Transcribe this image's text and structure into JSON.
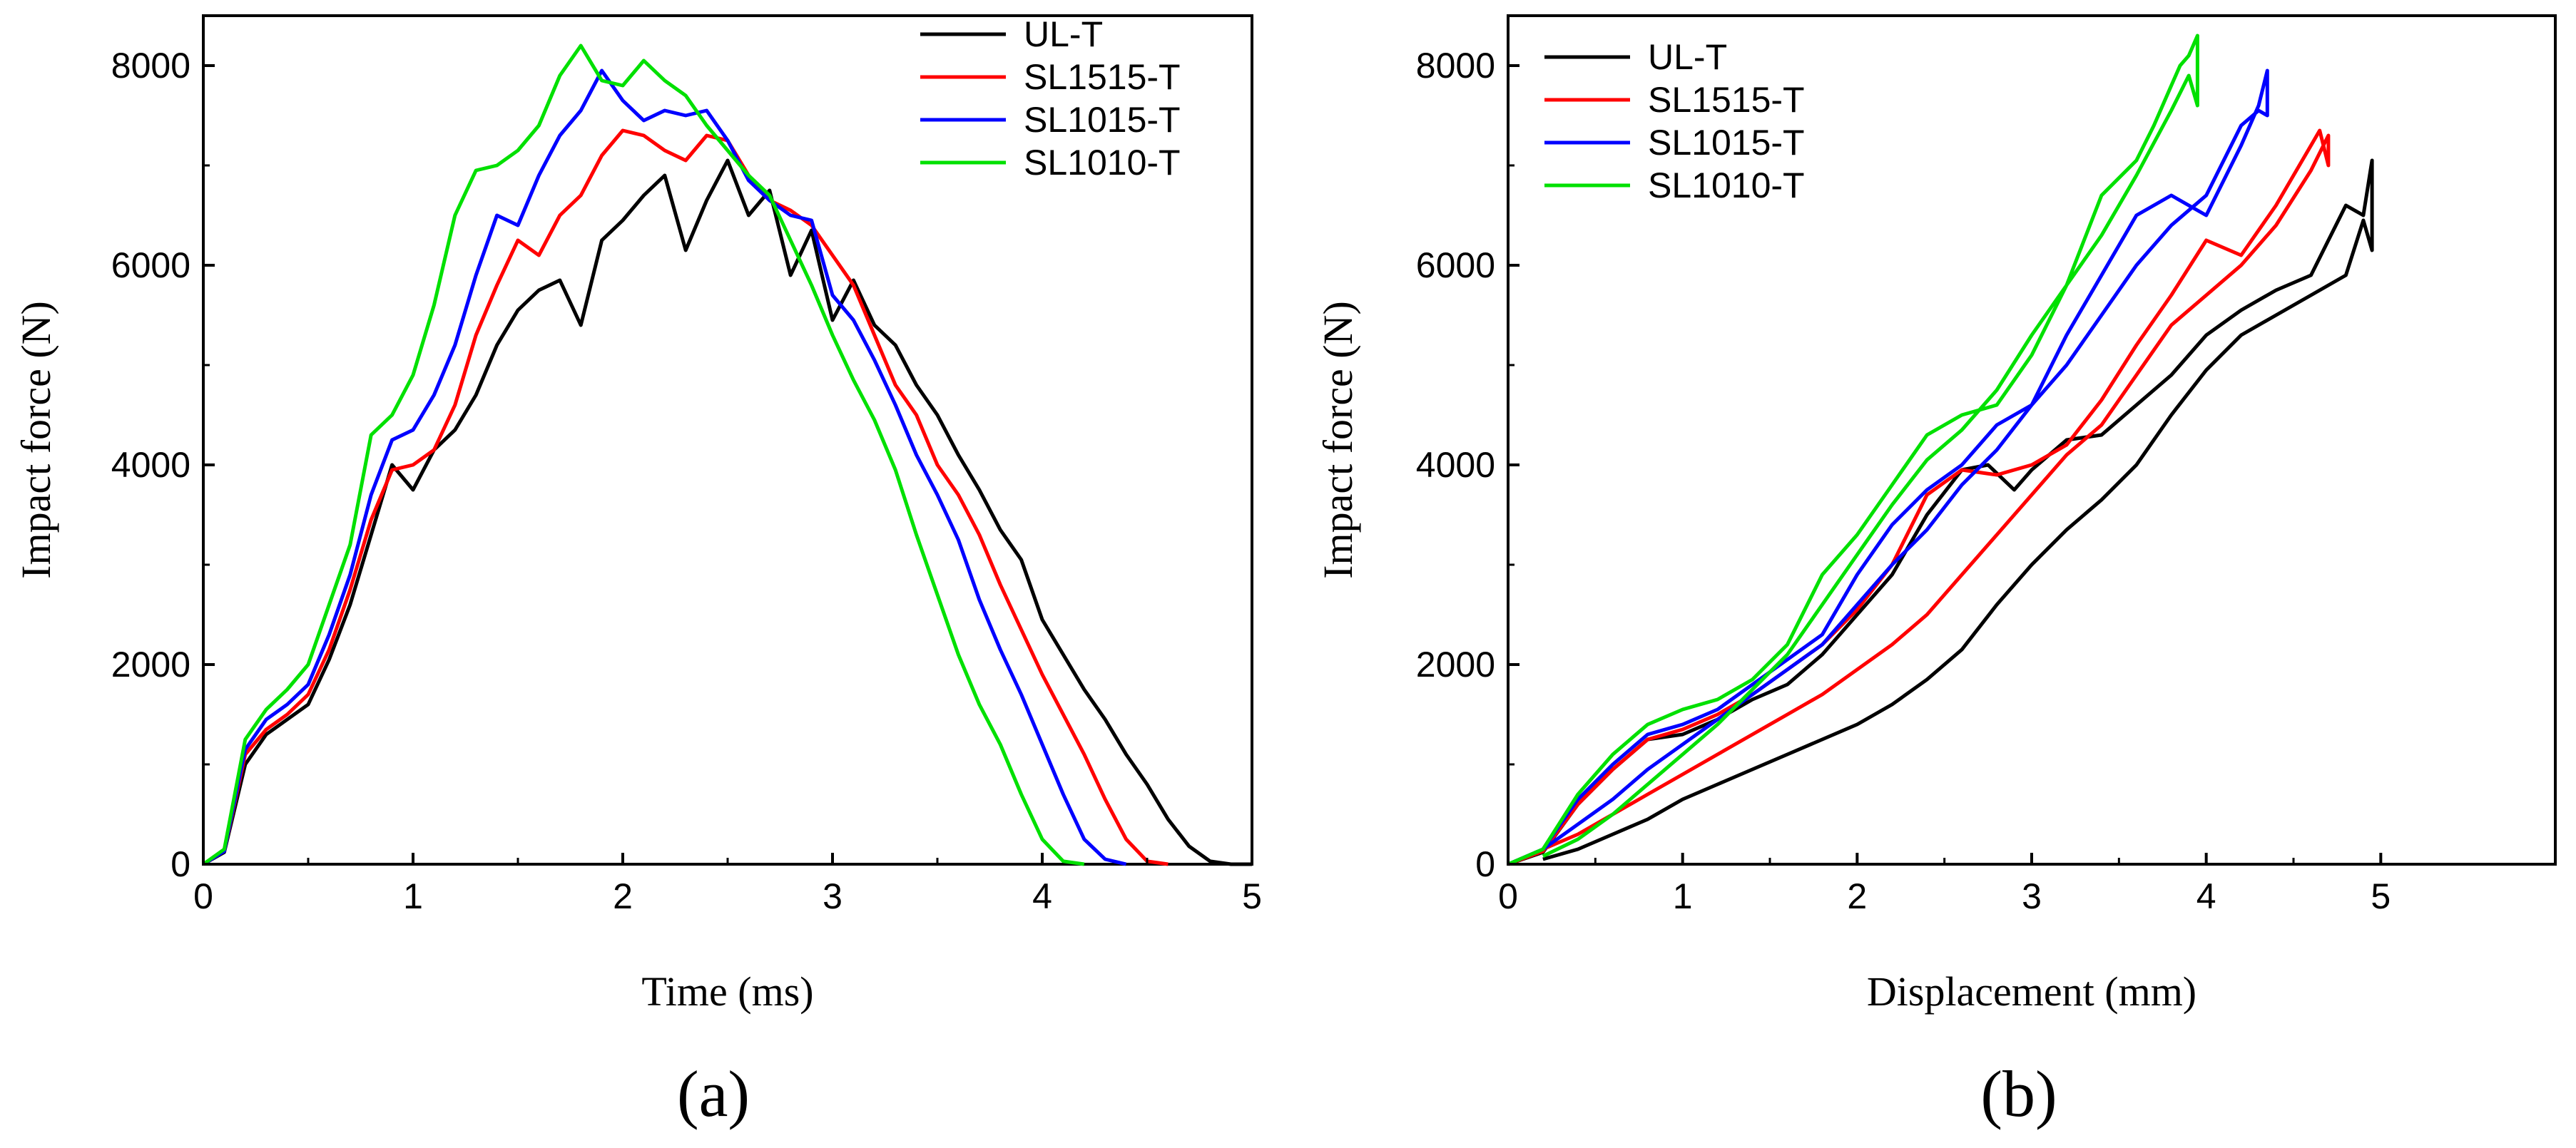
{
  "chart_data": [
    {
      "type": "line",
      "panel_label": "(a)",
      "xlabel": "Time (ms)",
      "ylabel": "Impact force (N)",
      "xlim": [
        0,
        5
      ],
      "ylim": [
        0,
        8500
      ],
      "xticks": [
        0,
        1,
        2,
        3,
        4,
        5
      ],
      "yticks": [
        0,
        2000,
        4000,
        6000,
        8000
      ],
      "legend_position": "top-right",
      "series": [
        {
          "name": "UL-T",
          "color": "#000000",
          "x": [
            0,
            0.1,
            0.2,
            0.3,
            0.4,
            0.5,
            0.6,
            0.7,
            0.8,
            0.9,
            1.0,
            1.1,
            1.2,
            1.3,
            1.4,
            1.5,
            1.6,
            1.7,
            1.8,
            1.9,
            2.0,
            2.1,
            2.2,
            2.3,
            2.4,
            2.5,
            2.6,
            2.7,
            2.8,
            2.9,
            3.0,
            3.1,
            3.2,
            3.3,
            3.4,
            3.5,
            3.6,
            3.7,
            3.8,
            3.9,
            4.0,
            4.1,
            4.2,
            4.3,
            4.4,
            4.5,
            4.6,
            4.7,
            4.8,
            4.9,
            5.0
          ],
          "y": [
            0,
            120,
            1000,
            1300,
            1450,
            1600,
            2050,
            2600,
            3300,
            4000,
            3750,
            4150,
            4350,
            4700,
            5200,
            5550,
            5750,
            5850,
            5400,
            6250,
            6450,
            6700,
            6900,
            6150,
            6650,
            7050,
            6500,
            6750,
            5900,
            6350,
            5450,
            5850,
            5400,
            5200,
            4800,
            4500,
            4100,
            3750,
            3350,
            3050,
            2450,
            2100,
            1750,
            1450,
            1100,
            800,
            450,
            180,
            30,
            0,
            0
          ]
        },
        {
          "name": "SL1515-T",
          "color": "#ff0000",
          "x": [
            0,
            0.1,
            0.2,
            0.3,
            0.4,
            0.5,
            0.6,
            0.7,
            0.8,
            0.9,
            1.0,
            1.1,
            1.2,
            1.3,
            1.4,
            1.5,
            1.6,
            1.7,
            1.8,
            1.9,
            2.0,
            2.1,
            2.2,
            2.3,
            2.4,
            2.5,
            2.6,
            2.7,
            2.8,
            2.9,
            3.0,
            3.1,
            3.2,
            3.3,
            3.4,
            3.5,
            3.6,
            3.7,
            3.8,
            3.9,
            4.0,
            4.1,
            4.2,
            4.3,
            4.4,
            4.5,
            4.6
          ],
          "y": [
            0,
            130,
            1100,
            1350,
            1500,
            1700,
            2150,
            2750,
            3450,
            3950,
            4000,
            4150,
            4600,
            5300,
            5800,
            6250,
            6100,
            6500,
            6700,
            7100,
            7350,
            7300,
            7150,
            7050,
            7300,
            7250,
            6900,
            6650,
            6550,
            6400,
            6100,
            5800,
            5300,
            4800,
            4500,
            4000,
            3700,
            3300,
            2800,
            2350,
            1900,
            1500,
            1100,
            650,
            250,
            30,
            0
          ]
        },
        {
          "name": "SL1015-T",
          "color": "#0000ff",
          "x": [
            0,
            0.1,
            0.2,
            0.3,
            0.4,
            0.5,
            0.6,
            0.7,
            0.8,
            0.9,
            1.0,
            1.1,
            1.2,
            1.3,
            1.4,
            1.5,
            1.6,
            1.7,
            1.8,
            1.9,
            2.0,
            2.1,
            2.2,
            2.3,
            2.4,
            2.5,
            2.6,
            2.7,
            2.8,
            2.9,
            3.0,
            3.1,
            3.2,
            3.3,
            3.4,
            3.5,
            3.6,
            3.7,
            3.8,
            3.9,
            4.0,
            4.1,
            4.2,
            4.3,
            4.4
          ],
          "y": [
            0,
            130,
            1150,
            1450,
            1600,
            1800,
            2300,
            2900,
            3700,
            4250,
            4350,
            4700,
            5200,
            5900,
            6500,
            6400,
            6900,
            7300,
            7550,
            7950,
            7650,
            7450,
            7550,
            7500,
            7550,
            7250,
            6850,
            6650,
            6500,
            6450,
            5700,
            5450,
            5050,
            4600,
            4100,
            3700,
            3250,
            2650,
            2150,
            1700,
            1200,
            700,
            250,
            50,
            0
          ]
        },
        {
          "name": "SL1010-T",
          "color": "#00e000",
          "x": [
            0,
            0.1,
            0.2,
            0.3,
            0.4,
            0.5,
            0.6,
            0.7,
            0.8,
            0.9,
            1.0,
            1.1,
            1.2,
            1.3,
            1.4,
            1.5,
            1.6,
            1.7,
            1.8,
            1.9,
            2.0,
            2.1,
            2.2,
            2.3,
            2.4,
            2.5,
            2.6,
            2.7,
            2.8,
            2.9,
            3.0,
            3.1,
            3.2,
            3.3,
            3.4,
            3.5,
            3.6,
            3.7,
            3.8,
            3.9,
            4.0,
            4.1,
            4.2
          ],
          "y": [
            0,
            150,
            1250,
            1550,
            1750,
            2000,
            2600,
            3200,
            4300,
            4500,
            4900,
            5600,
            6500,
            6950,
            7000,
            7150,
            7400,
            7900,
            8200,
            7850,
            7800,
            8050,
            7850,
            7700,
            7400,
            7150,
            6900,
            6700,
            6250,
            5800,
            5300,
            4850,
            4450,
            3950,
            3300,
            2700,
            2100,
            1600,
            1200,
            700,
            250,
            30,
            0
          ]
        }
      ]
    },
    {
      "type": "line",
      "panel_label": "(b)",
      "xlabel": "Displacement (mm)",
      "ylabel": "Impact force (N)",
      "xlim": [
        0,
        6
      ],
      "ylim": [
        0,
        8500
      ],
      "xticks": [
        0,
        1,
        2,
        3,
        4,
        5
      ],
      "yticks": [
        0,
        2000,
        4000,
        6000,
        8000
      ],
      "legend_position": "top-left",
      "series": [
        {
          "name": "UL-T",
          "color": "#000000",
          "x": [
            0,
            0.2,
            0.4,
            0.6,
            0.8,
            1.0,
            1.2,
            1.4,
            1.6,
            1.8,
            2.0,
            2.2,
            2.4,
            2.6,
            2.75,
            2.9,
            3.0,
            3.2,
            3.4,
            3.6,
            3.8,
            4.0,
            4.2,
            4.4,
            4.6,
            4.7,
            4.8,
            4.9,
            4.95,
            4.95,
            4.9,
            4.8,
            4.6,
            4.4,
            4.2,
            4.0,
            3.8,
            3.6,
            3.4,
            3.2,
            3.0,
            2.8,
            2.6,
            2.4,
            2.2,
            2.0,
            1.8,
            1.6,
            1.4,
            1.2,
            1.0,
            0.8,
            0.6,
            0.4,
            0.2
          ],
          "y": [
            0,
            120,
            600,
            950,
            1250,
            1300,
            1450,
            1650,
            1800,
            2100,
            2500,
            2900,
            3500,
            3950,
            4000,
            3750,
            3950,
            4250,
            4300,
            4600,
            4900,
            5300,
            5550,
            5750,
            5900,
            6250,
            6600,
            6500,
            7050,
            6150,
            6450,
            5900,
            5700,
            5500,
            5300,
            4950,
            4500,
            4000,
            3650,
            3350,
            3000,
            2600,
            2150,
            1850,
            1600,
            1400,
            1250,
            1100,
            950,
            800,
            650,
            450,
            300,
            150,
            50
          ]
        },
        {
          "name": "SL1515-T",
          "color": "#ff0000",
          "x": [
            0,
            0.2,
            0.4,
            0.6,
            0.8,
            1.0,
            1.2,
            1.4,
            1.6,
            1.8,
            2.0,
            2.2,
            2.4,
            2.6,
            2.8,
            3.0,
            3.2,
            3.4,
            3.6,
            3.8,
            4.0,
            4.2,
            4.4,
            4.6,
            4.65,
            4.7,
            4.7,
            4.6,
            4.4,
            4.2,
            4.0,
            3.8,
            3.6,
            3.4,
            3.2,
            3.0,
            2.8,
            2.6,
            2.4,
            2.2,
            2.0,
            1.8,
            1.6,
            1.4,
            1.2,
            1.0,
            0.8,
            0.6,
            0.4,
            0.2
          ],
          "y": [
            0,
            130,
            600,
            950,
            1250,
            1350,
            1500,
            1700,
            1950,
            2200,
            2550,
            3000,
            3700,
            3950,
            3900,
            4000,
            4200,
            4650,
            5200,
            5700,
            6250,
            6100,
            6600,
            7200,
            7350,
            7000,
            7300,
            6950,
            6400,
            6000,
            5700,
            5400,
            4900,
            4400,
            4100,
            3700,
            3300,
            2900,
            2500,
            2200,
            1950,
            1700,
            1500,
            1300,
            1100,
            900,
            700,
            500,
            300,
            150
          ]
        },
        {
          "name": "SL1015-T",
          "color": "#0000ff",
          "x": [
            0,
            0.2,
            0.4,
            0.6,
            0.8,
            1.0,
            1.2,
            1.4,
            1.6,
            1.8,
            2.0,
            2.2,
            2.4,
            2.6,
            2.8,
            3.0,
            3.2,
            3.4,
            3.6,
            3.8,
            4.0,
            4.2,
            4.3,
            4.35,
            4.35,
            4.3,
            4.2,
            4.0,
            3.8,
            3.6,
            3.4,
            3.2,
            3.0,
            2.8,
            2.6,
            2.4,
            2.2,
            2.0,
            1.8,
            1.6,
            1.4,
            1.2,
            1.0,
            0.8,
            0.6,
            0.4,
            0.2
          ],
          "y": [
            0,
            150,
            650,
            1000,
            1300,
            1400,
            1550,
            1800,
            2050,
            2300,
            2900,
            3400,
            3750,
            4000,
            4400,
            4600,
            5300,
            5900,
            6500,
            6700,
            6500,
            7200,
            7600,
            7950,
            7500,
            7550,
            7400,
            6700,
            6400,
            6000,
            5500,
            5000,
            4600,
            4150,
            3800,
            3350,
            3000,
            2600,
            2200,
            1950,
            1700,
            1450,
            1200,
            950,
            650,
            400,
            150
          ]
        },
        {
          "name": "SL1010-T",
          "color": "#00e000",
          "x": [
            0,
            0.2,
            0.4,
            0.6,
            0.8,
            1.0,
            1.2,
            1.4,
            1.6,
            1.8,
            2.0,
            2.2,
            2.4,
            2.6,
            2.8,
            3.0,
            3.2,
            3.4,
            3.6,
            3.7,
            3.8,
            3.85,
            3.9,
            3.95,
            3.95,
            3.9,
            3.8,
            3.6,
            3.4,
            3.2,
            3.0,
            2.8,
            2.6,
            2.4,
            2.2,
            2.0,
            1.8,
            1.6,
            1.4,
            1.2,
            1.0,
            0.8,
            0.6,
            0.4,
            0.2
          ],
          "y": [
            0,
            150,
            700,
            1100,
            1400,
            1550,
            1650,
            1850,
            2200,
            2900,
            3300,
            3800,
            4300,
            4500,
            4600,
            5100,
            5800,
            6700,
            7050,
            7400,
            7800,
            8000,
            8100,
            8300,
            7600,
            7900,
            7550,
            6900,
            6300,
            5800,
            5300,
            4750,
            4350,
            4050,
            3600,
            3100,
            2600,
            2100,
            1750,
            1400,
            1100,
            800,
            500,
            250,
            80
          ]
        }
      ]
    }
  ]
}
